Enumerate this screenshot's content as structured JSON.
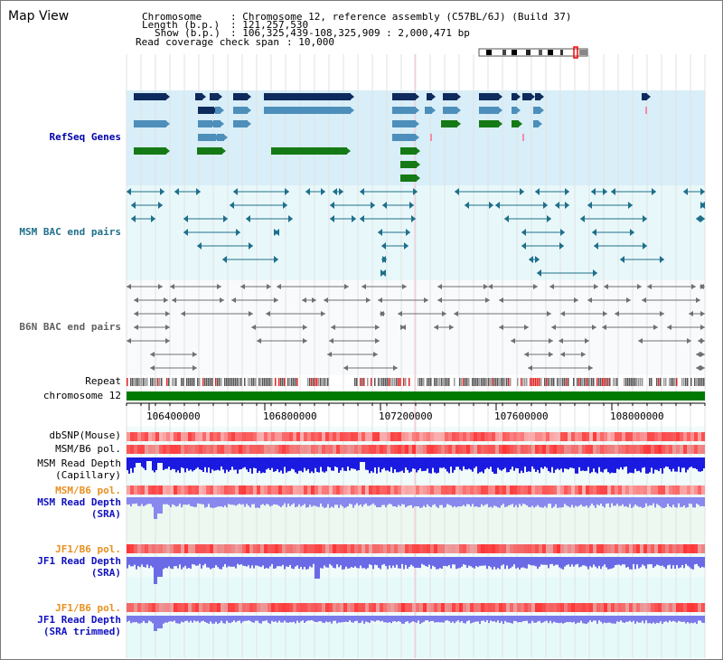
{
  "title": "Map View",
  "header": {
    "chromosome_label": "Chromosome",
    "chromosome_value": ": Chromosome 12, reference assembly (C57BL/6J) (Build 37)",
    "length_label": "Length (b.p.)",
    "length_value": ": 121,257,530",
    "show_label": "Show (b.p.)",
    "show_value": ": 106,325,439-108,325,909 : 2,000,471 bp",
    "coverage_label": "Read coverage check span",
    "coverage_value": ": 10,000"
  },
  "tracks": {
    "refseq": "RefSeq Genes",
    "msm_bac": "MSM BAC end pairs",
    "b6n_bac": "B6N BAC end pairs",
    "repeat": "Repeat",
    "chromosome": "chromosome 12",
    "dbsnp": "dbSNP(Mouse)",
    "msm_pol_1": "MSM/B6 pol.",
    "msm_depth_cap_1": "MSM Read Depth",
    "msm_depth_cap_2": "(Capillary)",
    "msm_pol_2": "MSM/B6 pol.",
    "msm_depth_sra_1": "MSM Read Depth",
    "msm_depth_sra_2": "(SRA)",
    "jf1_pol_1": "JF1/B6 pol.",
    "jf1_depth_sra_1": "JF1 Read Depth",
    "jf1_depth_sra_2": "(SRA)",
    "jf1_pol_2": "JF1/B6 pol.",
    "jf1_depth_trim_1": "JF1 Read Depth",
    "jf1_depth_trim_2": "(SRA trimmed)"
  },
  "axis_ticks": [
    "106400000",
    "106800000",
    "107200000",
    "107600000",
    "108000000"
  ],
  "colors": {
    "refseq_bg": "#d8eef8",
    "bac_bg": "#e8f8fa",
    "gene_navy": "#0f2a5c",
    "gene_lightblue": "#4d8fba",
    "gene_green": "#157a15",
    "chromosome_bar": "#007a00",
    "pol_red": "#e03030",
    "depth_blue": "#1a1ae0"
  }
}
